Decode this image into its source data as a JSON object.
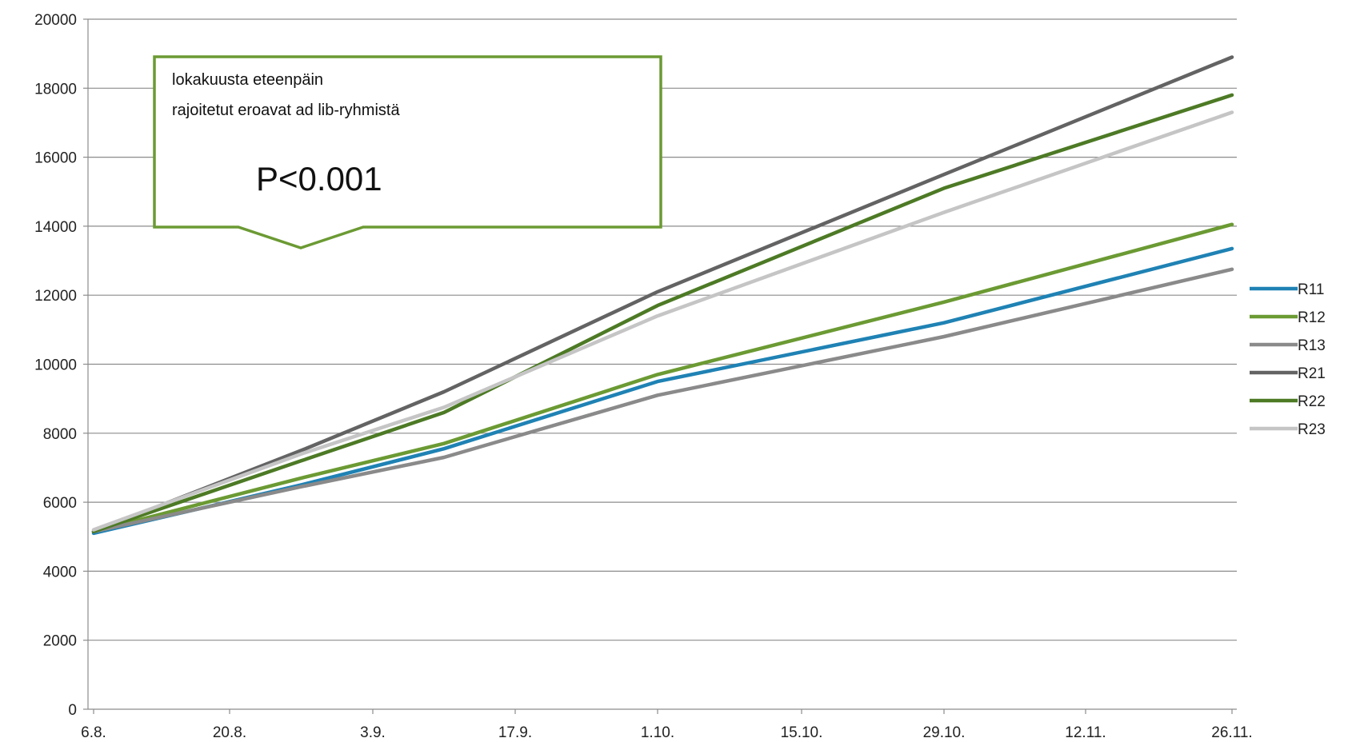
{
  "chart_data": {
    "type": "line",
    "title": "",
    "xlabel": "",
    "ylabel": "",
    "x_ticks": [
      "6.8.",
      "20.8.",
      "3.9.",
      "17.9.",
      "1.10.",
      "15.10.",
      "29.10.",
      "12.11.",
      "26.11."
    ],
    "y_ticks": [
      "0",
      "2000",
      "4000",
      "6000",
      "8000",
      "10000",
      "12000",
      "14000",
      "16000",
      "18000",
      "20000"
    ],
    "ylim": [
      0,
      20000
    ],
    "grid": "horizontal",
    "legend_position": "right",
    "x": [
      "6.8.",
      "27.8.",
      "10.9.",
      "1.10.",
      "29.10.",
      "26.11."
    ],
    "series": [
      {
        "name": "R11",
        "color": "#1F82B4",
        "values": [
          5100,
          6500,
          7550,
          9500,
          11200,
          13350
        ]
      },
      {
        "name": "R12",
        "color": "#6B9A33",
        "values": [
          5150,
          6700,
          7700,
          9700,
          11800,
          14050
        ]
      },
      {
        "name": "R13",
        "color": "#8A8A8A",
        "values": [
          5150,
          6450,
          7300,
          9100,
          10800,
          12750
        ]
      },
      {
        "name": "R21",
        "color": "#636363",
        "values": [
          5150,
          7500,
          9200,
          12100,
          15500,
          18900
        ]
      },
      {
        "name": "R22",
        "color": "#4D7A25",
        "values": [
          5150,
          7200,
          8600,
          11700,
          15100,
          17800
        ]
      },
      {
        "name": "R23",
        "color": "#C5C5C5",
        "values": [
          5200,
          7400,
          8750,
          11400,
          14400,
          17300
        ]
      }
    ],
    "annotation": {
      "line1": "lokakuusta eteenpäin",
      "line2": "rajoitetut eroavat ad lib-ryhmistä",
      "stat": "P<0.001",
      "border_color": "#6B9A33"
    }
  }
}
